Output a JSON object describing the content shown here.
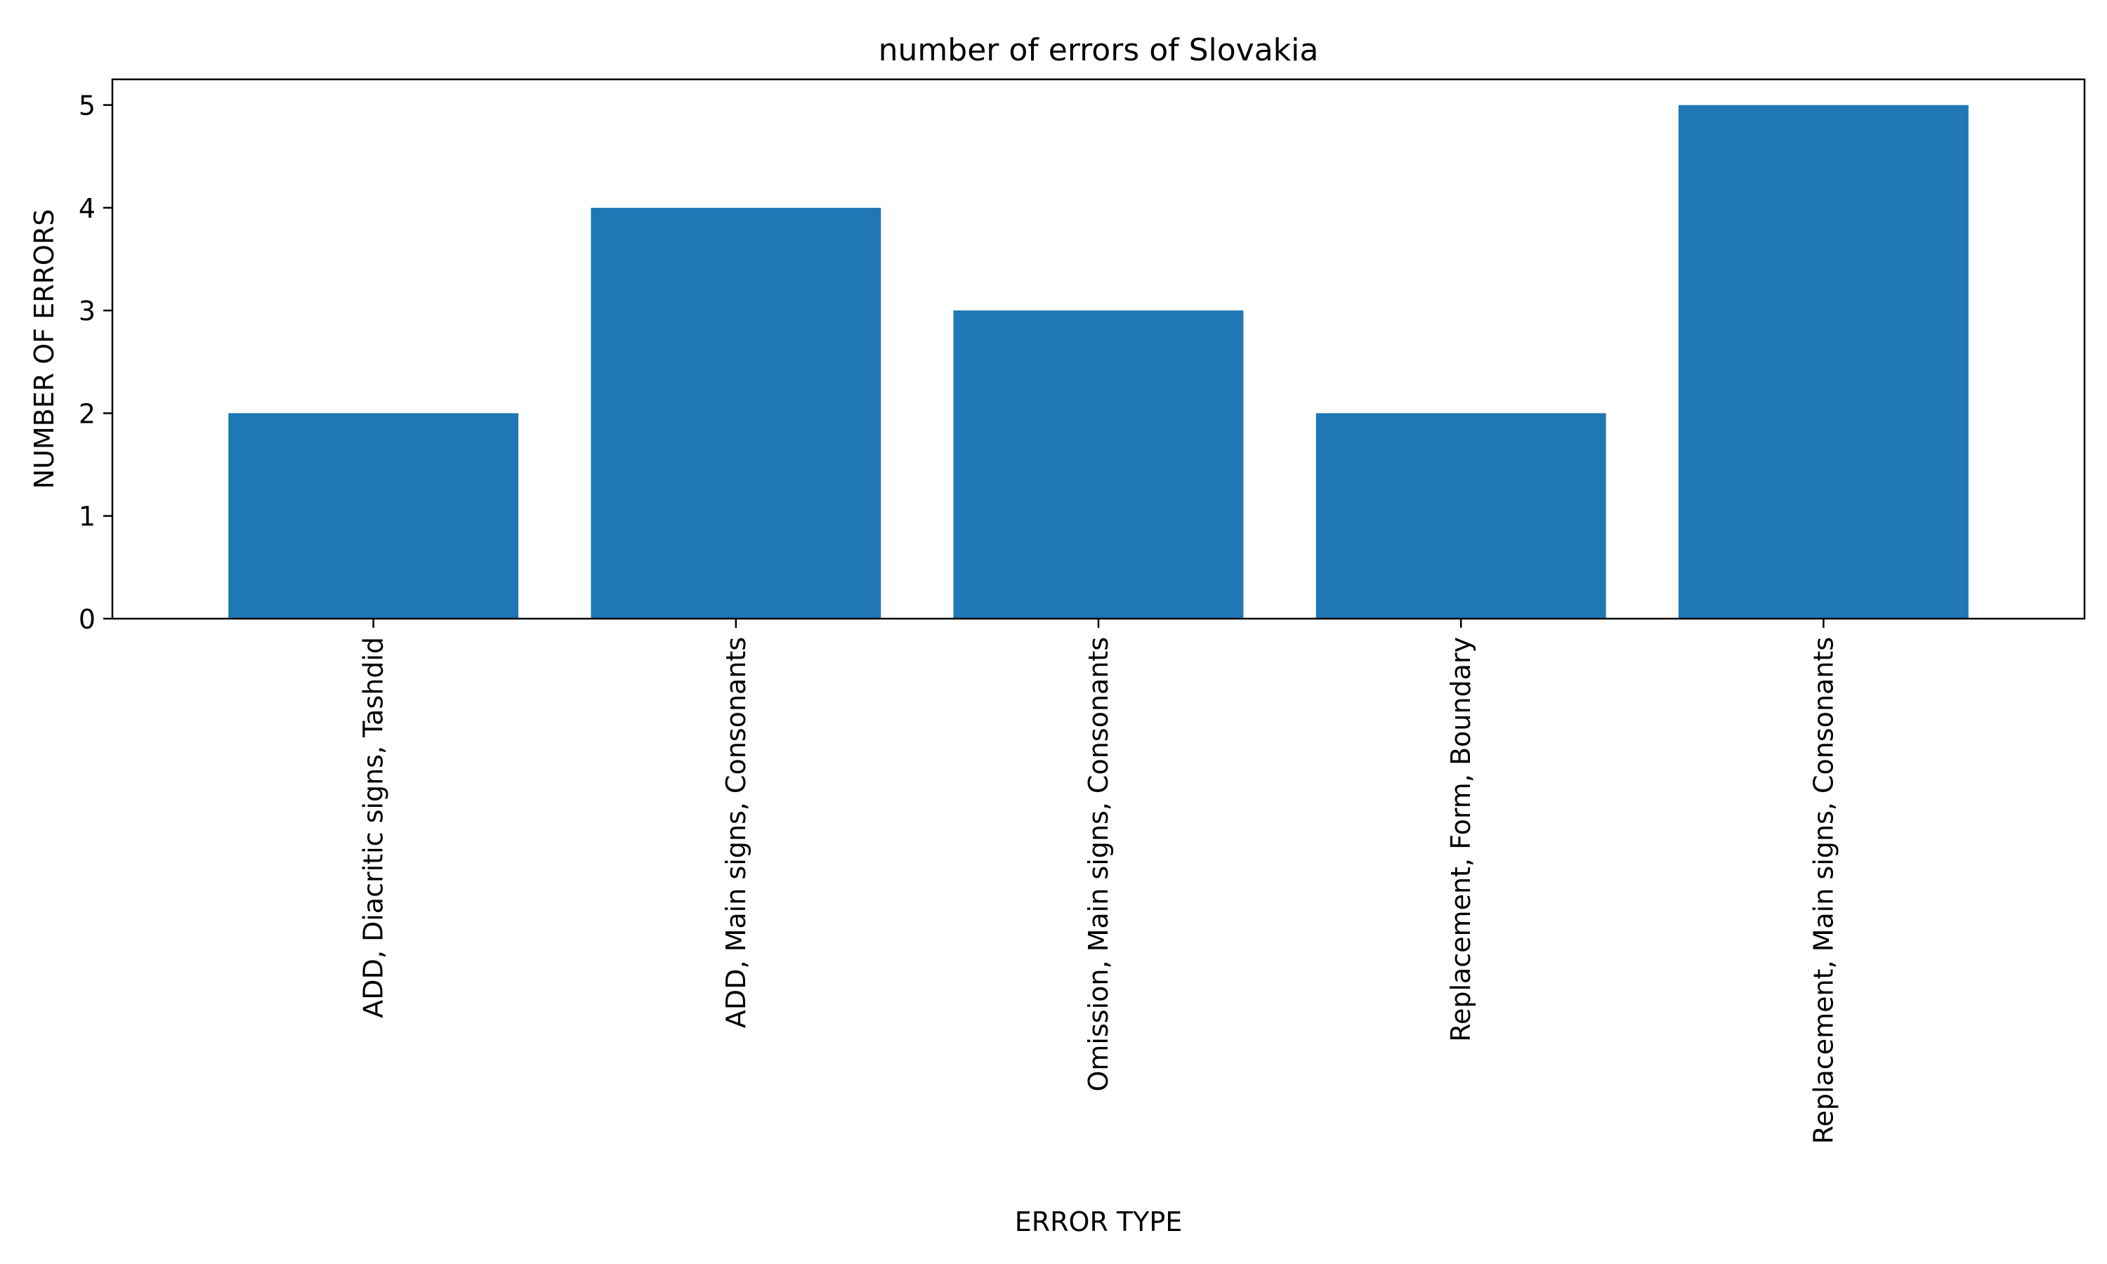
{
  "chart_data": {
    "type": "bar",
    "title": "number of errors of Slovakia",
    "xlabel": "ERROR TYPE",
    "ylabel": "NUMBER OF ERRORS",
    "categories": [
      "ADD, Diacritic signs, Tashdid",
      "ADD, Main signs, Consonants",
      "Omission, Main signs, Consonants",
      "Replacement, Form, Boundary",
      "Replacement, Main signs, Consonants"
    ],
    "values": [
      2,
      4,
      3,
      2,
      5
    ],
    "ylim": [
      0,
      5.25
    ],
    "yticks": [
      0,
      1,
      2,
      3,
      4,
      5
    ],
    "bar_color": "#1f77b4",
    "grid": false,
    "legend": false
  }
}
